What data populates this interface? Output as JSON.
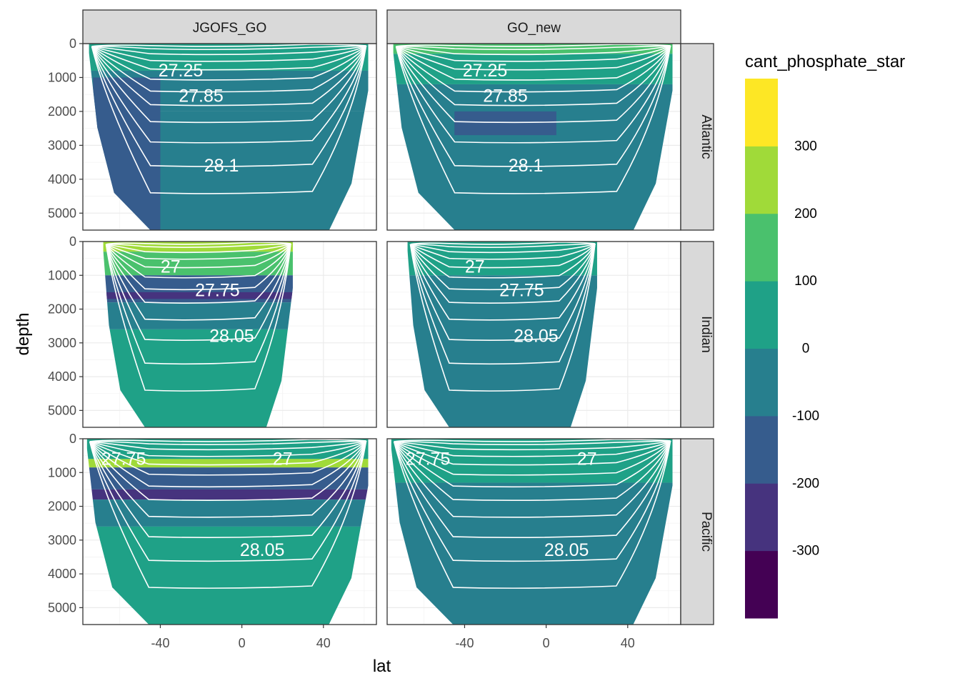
{
  "chart_data": {
    "type": "heatmap",
    "description_layout": "faceted depth-latitude sections, filled contours",
    "facet_columns": [
      "JGOFS_GO",
      "GO_new"
    ],
    "facet_rows": [
      "Atlantic",
      "Indian",
      "Pacific"
    ],
    "xlabel": "lat",
    "ylabel": "depth",
    "xlim": [
      -78,
      66
    ],
    "ylim": [
      5500,
      0
    ],
    "xticks": [
      -40,
      0,
      40
    ],
    "yticks": [
      0,
      1000,
      2000,
      3000,
      4000,
      5000
    ],
    "x_tick_labels": [
      "-40",
      "0",
      "40"
    ],
    "y_tick_labels": [
      "0",
      "1000",
      "2000",
      "3000",
      "4000",
      "5000"
    ],
    "legend": {
      "title": "cant_phosphate_star",
      "placement": "right",
      "breaks": [
        -400,
        -300,
        -200,
        -100,
        0,
        100,
        200,
        300,
        400
      ],
      "labels": [
        "300",
        "200",
        "100",
        "0",
        "-100",
        "-200",
        "-300"
      ],
      "label_values": [
        300,
        200,
        100,
        0,
        -100,
        -200,
        -300
      ],
      "colors": [
        "#440154",
        "#46337E",
        "#365C8D",
        "#277F8E",
        "#1FA187",
        "#4AC16D",
        "#A0DA39",
        "#FDE725"
      ]
    },
    "isopycnal_labels": {
      "Atlantic": [
        {
          "text": "27.25",
          "lat": -30,
          "depth": 800
        },
        {
          "text": "27.85",
          "lat": -20,
          "depth": 1550
        },
        {
          "text": "28.1",
          "lat": -10,
          "depth": 3600
        }
      ],
      "Indian": [
        {
          "text": "27",
          "lat": -35,
          "depth": 750
        },
        {
          "text": "27.75",
          "lat": -12,
          "depth": 1450
        },
        {
          "text": "28.05",
          "lat": -5,
          "depth": 2800
        }
      ],
      "Pacific": [
        {
          "text": "27.75",
          "lat": -58,
          "depth": 600
        },
        {
          "text": "27",
          "lat": 20,
          "depth": 600
        },
        {
          "text": "28.05",
          "lat": 10,
          "depth": 3300
        }
      ]
    },
    "panels": [
      {
        "column": "JGOFS_GO",
        "row": "Atlantic",
        "lat_range": [
          -75,
          62
        ],
        "max_depth": 5500,
        "layers": [
          {
            "top": 0,
            "bottom": 800,
            "value": 50
          },
          {
            "top": 800,
            "bottom": 2000,
            "value": -50
          },
          {
            "top": 2000,
            "bottom": 5500,
            "value": -50
          },
          {
            "top": 1000,
            "bottom": 5500,
            "lat_range": [
              -73,
              -40
            ],
            "value": -150
          }
        ]
      },
      {
        "column": "GO_new",
        "row": "Atlantic",
        "lat_range": [
          -75,
          62
        ],
        "max_depth": 5500,
        "layers": [
          {
            "top": 0,
            "bottom": 300,
            "value": 150
          },
          {
            "top": 300,
            "bottom": 1200,
            "value": 50
          },
          {
            "top": 1200,
            "bottom": 5500,
            "value": -50
          },
          {
            "top": 2000,
            "bottom": 2700,
            "lat_range": [
              -45,
              5
            ],
            "value": -150
          }
        ]
      },
      {
        "column": "JGOFS_GO",
        "row": "Indian",
        "lat_range": [
          -68,
          25
        ],
        "max_depth": 5500,
        "layers": [
          {
            "top": 0,
            "bottom": 300,
            "value": 250
          },
          {
            "top": 300,
            "bottom": 1000,
            "value": 150
          },
          {
            "top": 1000,
            "bottom": 1800,
            "value": -150
          },
          {
            "top": 1500,
            "bottom": 1700,
            "value": -250
          },
          {
            "top": 1800,
            "bottom": 2600,
            "value": -50
          },
          {
            "top": 2600,
            "bottom": 5500,
            "value": 50
          }
        ]
      },
      {
        "column": "GO_new",
        "row": "Indian",
        "lat_range": [
          -68,
          25
        ],
        "max_depth": 5500,
        "layers": [
          {
            "top": 0,
            "bottom": 1000,
            "value": 50
          },
          {
            "top": 1000,
            "bottom": 5500,
            "value": -50
          }
        ]
      },
      {
        "column": "JGOFS_GO",
        "row": "Pacific",
        "lat_range": [
          -76,
          62
        ],
        "max_depth": 5500,
        "layers": [
          {
            "top": 0,
            "bottom": 600,
            "value": 50
          },
          {
            "top": 600,
            "bottom": 850,
            "value": 250
          },
          {
            "top": 850,
            "bottom": 1500,
            "value": -150
          },
          {
            "top": 1500,
            "bottom": 1800,
            "value": -250
          },
          {
            "top": 1800,
            "bottom": 2600,
            "value": -50
          },
          {
            "top": 2600,
            "bottom": 5500,
            "value": 50
          }
        ]
      },
      {
        "column": "GO_new",
        "row": "Pacific",
        "lat_range": [
          -76,
          62
        ],
        "max_depth": 5500,
        "layers": [
          {
            "top": 0,
            "bottom": 1300,
            "value": 50
          },
          {
            "top": 1300,
            "bottom": 5500,
            "value": -50
          }
        ]
      }
    ]
  }
}
